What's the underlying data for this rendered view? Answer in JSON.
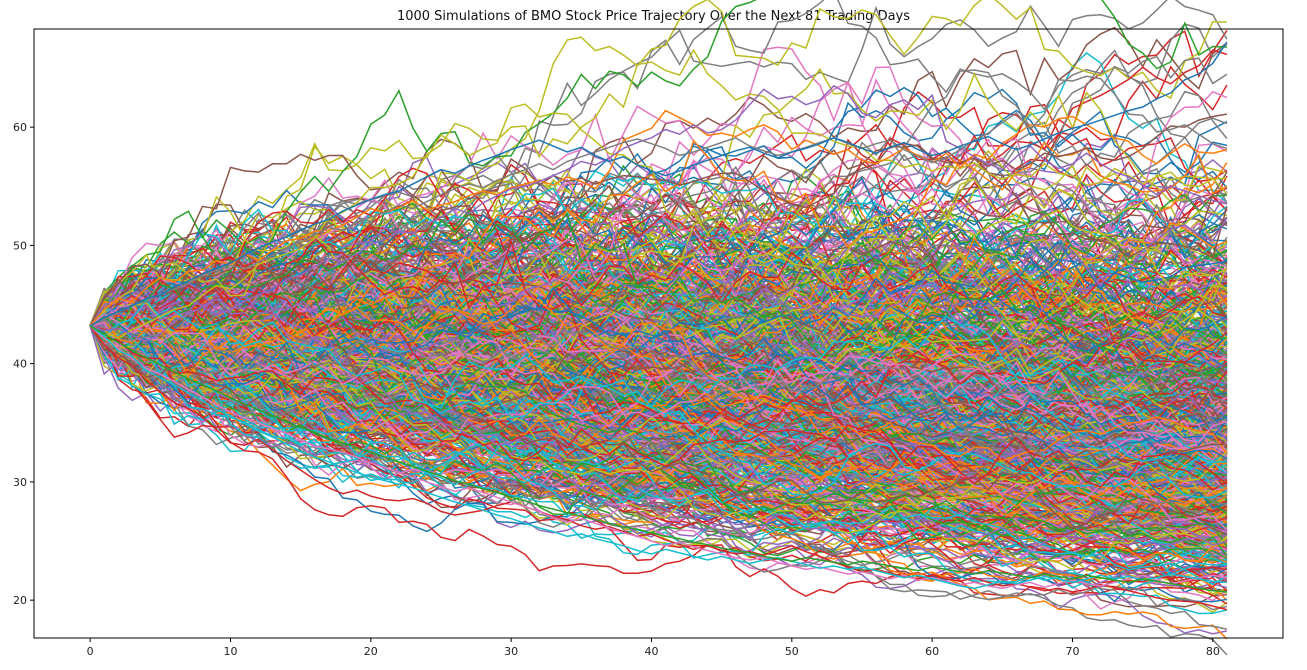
{
  "chart_data": {
    "type": "line",
    "title": "1000 Simulations of BMO Stock Price Trajectory Over the Next 81 Trading Days",
    "xlabel": "",
    "ylabel": "",
    "xlim": [
      -4,
      85
    ],
    "ylim": [
      16.8,
      68.3
    ],
    "x_ticks": [
      0,
      10,
      20,
      30,
      40,
      50,
      60,
      70,
      80
    ],
    "y_ticks": [
      20,
      30,
      40,
      50,
      60
    ],
    "grid": false,
    "legend": "none",
    "num_simulations": 1000,
    "num_days": 81,
    "start_price": 43.2,
    "x": "trading day 0..81",
    "series": [
      {
        "values": [
          43.2,
          45.5,
          46.8,
          48.2,
          48.4,
          47.6,
          50.4,
          50.7,
          53.3,
          53.1,
          56.6,
          56.3,
          56.2,
          56.9,
          56.9,
          57.7,
          57.2,
          57.6,
          57.6,
          55.9,
          54.7,
          54.9,
          55.2,
          54.2,
          55.8,
          56.4,
          54.7,
          53.9,
          54.6,
          54.6,
          57.3,
          56.5,
          55.1,
          55.9,
          55.4,
          55.7,
          55.2,
          55.6,
          55.9,
          55.8,
          55.6,
          55.5,
          55.1,
          55.4,
          55.8,
          56.1,
          56.1,
          55.4,
          54.6,
          54.1,
          53.5,
          53.2,
          53.8,
          54.4,
          55.9,
          56.5,
          56.9,
          58.4,
          58.3,
          58.5,
          57.4,
          57.0,
          57.0,
          57.4,
          56.7,
          57.2,
          56.4,
          56.9,
          57.8,
          57.5,
          57.8,
          58.2,
          57.4,
          57.2,
          57.5,
          58.2,
          59.2,
          60.1,
          60.0,
          60.6,
          60.9,
          61.1
        ]
      },
      {
        "values": [
          43.2,
          42.8,
          42.1,
          42.9,
          43.4,
          44.0,
          44.6,
          44.9,
          45.8,
          46.6,
          46.3,
          47.2,
          48.4,
          48.9,
          49.3,
          49.7,
          50.6,
          52.3,
          52.8,
          53.6,
          54.9,
          54.9,
          55.2,
          55.8,
          57.7,
          58.5,
          60.3,
          59.9,
          59.0,
          58.9,
          60.0,
          60.1,
          57.5,
          59.0,
          58.6,
          60.0,
          60.8,
          62.8,
          61.7,
          65.3,
          65.5,
          64.8,
          64.4,
          66.5,
          64.5,
          63.5,
          62.3,
          62.8,
          62.6,
          61.5,
          59.5,
          59.5,
          59.4,
          58.8,
          58.4,
          58.3,
          57.2,
          57.2,
          56.6,
          56.9,
          56.3,
          56.7,
          56.5,
          57.0,
          56.1,
          55.6,
          56.0,
          55.8,
          56.9,
          56.1,
          55.9,
          55.1,
          55.3,
          56.5,
          55.9,
          55.2,
          55.8,
          56.2,
          55.1,
          55.0,
          55.6,
          55.7
        ]
      },
      {
        "values": [
          43.2,
          44.6,
          45.5,
          45.2,
          46.4,
          47.3,
          46.9,
          47.8,
          47.9,
          48.7,
          48.4,
          49.3,
          48.7,
          49.6,
          50.4,
          50.6,
          51.2,
          51.3,
          51.7,
          52.4,
          53.1,
          52.8,
          53.2,
          53.8,
          53.0,
          53.4,
          53.7,
          54.2,
          54.6,
          54.3,
          54.9,
          55.2,
          55.5,
          55.1,
          55.8,
          55.4,
          54.8,
          56.3,
          58.9,
          59.4,
          59.9,
          61.4,
          60.8,
          60.2,
          59.3,
          59.5,
          59.2,
          59.8,
          60.2,
          59.6,
          58.1,
          58.9,
          58.4,
          57.7,
          58.1,
          57.2,
          56.9,
          57.5,
          58.2,
          57.6,
          57.0,
          57.8,
          56.6,
          57.7,
          57.3,
          58.6,
          59.4,
          60.2,
          60.0,
          60.7,
          60.9,
          60.2,
          59.5,
          59.1,
          58.8,
          57.6,
          56.9,
          57.8,
          58.6,
          57.9,
          57.8,
          58.1
        ]
      },
      {
        "values": [
          43.2,
          42.8,
          43.0,
          42.4,
          41.9,
          42.5,
          43.6,
          44.2,
          44.8,
          44.1,
          44.6,
          45.3,
          45.8,
          46.4,
          47.1,
          47.5,
          48.2,
          48.9,
          48.6,
          49.3,
          50.1,
          50.5,
          51.2,
          51.0,
          51.8,
          52.4,
          53.1,
          52.7,
          53.6,
          54.2,
          54.8,
          55.0,
          55.4,
          55.9,
          56.4,
          57.1,
          56.8,
          57.4,
          58.2,
          58.7,
          59.1,
          59.8,
          59.4,
          60.2,
          59.5,
          59.8,
          60.6,
          61.9,
          63.2,
          62.4,
          62.6,
          61.9,
          62.3,
          63.5,
          62.8,
          61.2,
          60.8,
          61.9,
          62.3,
          61.5,
          62.7,
          58.8,
          58.2,
          57.5,
          56.9,
          56.4,
          57.5,
          58.4,
          57.2,
          56.5,
          56.9,
          57.8,
          56.9,
          56.2,
          55.8,
          55.1,
          54.3,
          55.0,
          54.6,
          54.2,
          53.8,
          53.5
        ]
      },
      {
        "values": [
          43.2,
          43.8,
          44.3,
          45.0,
          45.2,
          45.9,
          46.3,
          46.8,
          47.4,
          47.9,
          48.3,
          48.0,
          48.6,
          49.2,
          49.8,
          50.3,
          50.9,
          51.5,
          51.3,
          51.9,
          52.4,
          52.8,
          53.4,
          53.1,
          53.7,
          54.3,
          54.8,
          55.2,
          54.9,
          55.5,
          56.0,
          56.4,
          56.9,
          56.4,
          57.1,
          57.5,
          57.9,
          58.3,
          58.7,
          59.0,
          58.6,
          58.2,
          57.6,
          57.9,
          58.3,
          58.7,
          59.1,
          58.4,
          58.0,
          57.6,
          57.9,
          58.3,
          58.7,
          59.1,
          58.6,
          58.2,
          58.6,
          58.9,
          58.1,
          57.5,
          57.0,
          57.4,
          58.1,
          58.9,
          59.5,
          60.4,
          61.2,
          59.8,
          61.1,
          64.0,
          63.9,
          64.3,
          64.1,
          62.8,
          61.1,
          61.0,
          59.6,
          59.8,
          60.2,
          59.4,
          58.6,
          58.2
        ]
      },
      {
        "values": [
          43.2,
          43.9,
          44.4,
          44.9,
          45.5,
          45.8,
          46.5,
          47.0,
          47.6,
          48.1,
          48.5,
          49.2,
          49.8,
          50.3,
          50.7,
          51.3,
          51.8,
          52.2,
          52.9,
          53.4,
          53.9,
          54.3,
          54.6,
          55.2,
          55.8,
          56.4,
          56.1,
          56.7,
          57.2,
          57.6,
          58.1,
          58.5,
          58.9,
          58.4,
          57.9,
          58.3,
          57.6,
          57.1,
          57.5,
          56.8,
          56.3,
          55.9,
          56.3,
          56.8,
          57.2,
          57.6,
          58.0,
          58.3,
          57.8,
          57.4,
          57.9,
          58.2,
          58.6,
          59.1,
          58.7,
          58.2,
          57.8,
          58.3,
          58.7,
          58.1,
          57.6,
          57.9,
          58.4,
          58.8,
          59.2,
          58.6,
          58.1,
          58.5,
          59.0,
          59.5,
          59.9,
          60.2,
          60.6,
          61.0,
          61.4,
          61.7,
          62.4,
          62.9,
          64.0,
          64.5,
          65.4,
          67.2
        ]
      },
      {
        "values": [
          43.2,
          41.6,
          40.5,
          39.8,
          38.6,
          37.6,
          36.7,
          36.2,
          35.5,
          34.4,
          33.3,
          33.1,
          33.6,
          32.7,
          31.8,
          31.0,
          30.2,
          29.5,
          29.0,
          29.3,
          28.8,
          28.5,
          28.4,
          28.6,
          28.2,
          27.5,
          27.2,
          27.4,
          27.6,
          28.0,
          28.3,
          27.9,
          27.5,
          27.1,
          26.8,
          26.3,
          26.0,
          26.2,
          25.8,
          25.4,
          25.6,
          25.1,
          24.7,
          24.3,
          24.6,
          24.2,
          23.9,
          24.1,
          23.8,
          24.2,
          24.6,
          24.1,
          23.7,
          23.2,
          22.8,
          22.4,
          22.6,
          22.3,
          22.0,
          21.8,
          22.1,
          21.8,
          21.6,
          21.9,
          21.5,
          21.2,
          21.4,
          21.1,
          20.8,
          21.0,
          20.7,
          20.9,
          21.3,
          21.1,
          20.8,
          20.5,
          20.2,
          20.0,
          19.9,
          19.8,
          19.5,
          19.2
        ]
      },
      {
        "values": [
          43.2,
          42.1,
          41.3,
          40.4,
          39.6,
          39.1,
          38.5,
          37.8,
          37.2,
          36.5,
          35.9,
          35.4,
          35.0,
          34.5,
          34.1,
          33.6,
          33.0,
          32.8,
          32.5,
          32.1,
          31.6,
          31.2,
          30.8,
          30.4,
          30.0,
          29.6,
          29.2,
          29.5,
          29.1,
          28.7,
          28.3,
          27.9,
          27.5,
          27.0,
          26.6,
          26.9,
          26.5,
          26.1,
          25.7,
          25.4,
          25.0,
          24.6,
          24.9,
          24.5,
          24.2,
          23.9,
          23.6,
          23.4,
          23.6,
          23.2,
          22.9,
          22.6,
          22.8,
          22.5,
          22.2,
          22.4,
          22.1,
          21.8,
          22.1,
          21.7,
          21.9,
          21.6,
          21.3,
          21.5,
          21.2,
          21.0,
          21.3,
          21.5,
          21.1,
          21.4,
          21.7,
          21.4,
          21.2,
          21.5,
          21.8,
          22.1,
          21.7,
          21.4,
          21.6,
          21.9,
          22.1,
          21.9
        ]
      },
      {
        "values": [
          43.2,
          42.3,
          41.1,
          40.6,
          39.4,
          38.8,
          38.2,
          37.5,
          36.9,
          36.1,
          35.6,
          34.9,
          34.3,
          33.8,
          33.2,
          32.6,
          32.1,
          31.7,
          31.2,
          30.8,
          30.4,
          30.1,
          29.8,
          29.5,
          29.1,
          28.7,
          28.3,
          28.0,
          27.6,
          27.2,
          26.9,
          26.5,
          26.1,
          25.8,
          25.4,
          25.6,
          25.2,
          24.9,
          24.6,
          24.2,
          23.9,
          24.3,
          24.0,
          23.7,
          23.4,
          23.7,
          23.4,
          23.1,
          23.4,
          23.6,
          23.3,
          23.0,
          22.7,
          22.9,
          22.6,
          22.8,
          22.5,
          22.2,
          21.9,
          22.1,
          21.8,
          21.5,
          21.2,
          21.0,
          21.3,
          21.6,
          21.4,
          21.7,
          22.0,
          21.8,
          21.5,
          21.8,
          22.1,
          21.8,
          22.0,
          21.7,
          21.9,
          22.2,
          22.0,
          21.8,
          21.6,
          21.5
        ]
      },
      {
        "values": [
          43.2,
          42.5,
          41.8,
          41.1,
          40.5,
          39.9,
          39.3,
          38.7,
          38.2,
          37.7,
          37.1,
          36.6,
          36.1,
          35.6,
          35.1,
          34.6,
          34.2,
          33.7,
          33.3,
          32.9,
          32.5,
          32.1,
          31.7,
          31.3,
          30.9,
          30.5,
          30.1,
          29.8,
          29.4,
          29.1,
          28.7,
          28.4,
          28.0,
          27.7,
          27.4,
          27.1,
          26.8,
          26.5,
          26.2,
          26.0,
          25.7,
          25.4,
          25.2,
          24.9,
          24.7,
          24.4,
          24.2,
          24.0,
          23.7,
          23.5,
          23.3,
          23.6,
          23.4,
          23.2,
          23.0,
          23.3,
          23.1,
          22.9,
          22.7,
          22.5,
          22.8,
          22.6,
          22.4,
          22.2,
          22.5,
          22.3,
          22.1,
          21.9,
          22.2,
          22.0,
          21.8,
          22.1,
          21.9,
          21.7,
          21.5,
          21.8,
          21.6,
          21.4,
          21.2,
          21.0,
          20.8,
          20.7
        ]
      }
    ]
  }
}
